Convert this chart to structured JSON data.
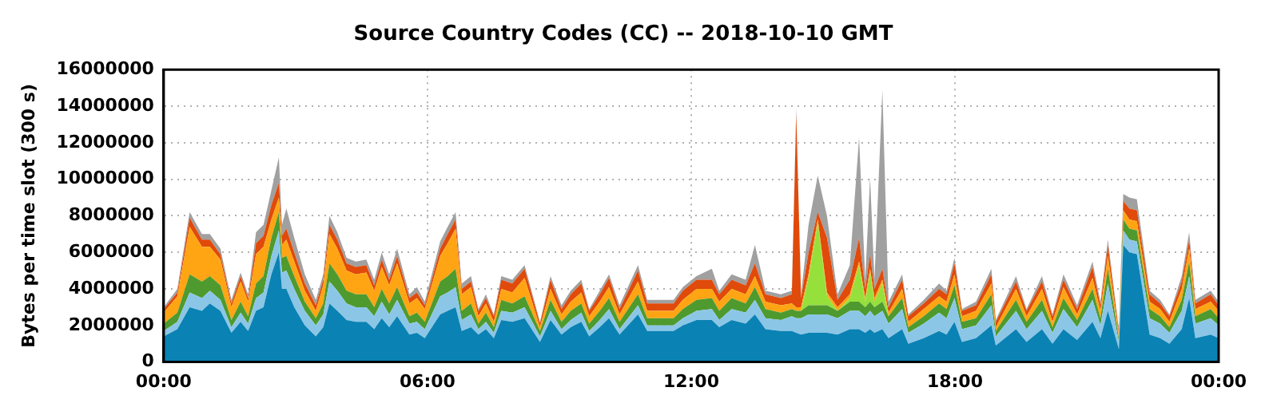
{
  "chart_data": {
    "type": "area",
    "stacked": true,
    "title": "Source Country Codes (CC) -- 2018-10-10 GMT",
    "ylabel": "Bytes per time slot (300 s)",
    "grid": true,
    "legend": false,
    "xlim": [
      0,
      24
    ],
    "xticks": [
      {
        "value": 0,
        "label": "00:00"
      },
      {
        "value": 6,
        "label": "06:00"
      },
      {
        "value": 12,
        "label": "12:00"
      },
      {
        "value": 18,
        "label": "18:00"
      },
      {
        "value": 24,
        "label": "00:00"
      }
    ],
    "ylim": [
      0,
      16000000
    ],
    "yticks": [
      0,
      2000000,
      4000000,
      6000000,
      8000000,
      10000000,
      12000000,
      14000000,
      16000000
    ],
    "x": [
      0,
      0.31,
      0.59,
      0.87,
      1.05,
      1.29,
      1.54,
      1.75,
      1.92,
      2.1,
      2.27,
      2.45,
      2.62,
      2.69,
      2.79,
      2.97,
      3.21,
      3.46,
      3.63,
      3.77,
      3.95,
      4.16,
      4.37,
      4.61,
      4.79,
      4.96,
      5.13,
      5.31,
      5.59,
      5.76,
      5.94,
      6.29,
      6.46,
      6.64,
      6.78,
      6.99,
      7.16,
      7.33,
      7.51,
      7.68,
      7.93,
      8.21,
      8.56,
      8.8,
      9.05,
      9.26,
      9.5,
      9.68,
      9.92,
      10.13,
      10.37,
      10.79,
      11.0,
      11.25,
      11.6,
      11.81,
      12.12,
      12.47,
      12.64,
      12.92,
      13.24,
      13.45,
      13.69,
      14.04,
      14.29,
      14.39,
      14.5,
      14.67,
      14.88,
      15.09,
      15.33,
      15.61,
      15.82,
      15.96,
      16.07,
      16.17,
      16.35,
      16.49,
      16.8,
      16.94,
      17.29,
      17.64,
      17.81,
      17.99,
      18.16,
      18.48,
      18.83,
      18.93,
      19.39,
      19.63,
      19.98,
      20.22,
      20.47,
      20.78,
      21.13,
      21.31,
      21.48,
      21.73,
      21.83,
      21.97,
      22.14,
      22.43,
      22.67,
      22.88,
      23.16,
      23.33,
      23.47,
      23.82,
      24
    ],
    "series": [
      {
        "color": "#0a82b4",
        "values": [
          1400000.0,
          1800000.0,
          3000000.0,
          2800000.0,
          3200000.0,
          2800000.0,
          1600000.0,
          2200000.0,
          1700000.0,
          2800000.0,
          3000000.0,
          4800000.0,
          6000000.0,
          4000000.0,
          4000000.0,
          3000000.0,
          2000000.0,
          1400000.0,
          1900000.0,
          3200000.0,
          2800000.0,
          2300000.0,
          2200000.0,
          2200000.0,
          1800000.0,
          2400000.0,
          1900000.0,
          2500000.0,
          1500000.0,
          1600000.0,
          1300000.0,
          2600000.0,
          2800000.0,
          3000000.0,
          1700000.0,
          1900000.0,
          1500000.0,
          1800000.0,
          1300000.0,
          2300000.0,
          2200000.0,
          2400000.0,
          1100000.0,
          2300000.0,
          1500000.0,
          1900000.0,
          2200000.0,
          1400000.0,
          1900000.0,
          2400000.0,
          1500000.0,
          2600000.0,
          1700000.0,
          1700000.0,
          1700000.0,
          2000000.0,
          2300000.0,
          2300000.0,
          1900000.0,
          2300000.0,
          2100000.0,
          2600000.0,
          1800000.0,
          1700000.0,
          1700000.0,
          1600000.0,
          1500000.0,
          1600000.0,
          1600000.0,
          1600000.0,
          1500000.0,
          1800000.0,
          1800000.0,
          1600000.0,
          1800000.0,
          1600000.0,
          1800000.0,
          1300000.0,
          1800000.0,
          1000000.0,
          1300000.0,
          1700000.0,
          1500000.0,
          2200000.0,
          1100000.0,
          1300000.0,
          2000000.0,
          900000.0,
          1800000.0,
          1100000.0,
          1800000.0,
          1000000.0,
          1800000.0,
          1200000.0,
          2200000.0,
          1300000.0,
          2800000.0,
          700000.0,
          6400000.0,
          6000000.0,
          5900000.0,
          1500000.0,
          1300000.0,
          1000000.0,
          1800000.0,
          3500000.0,
          1300000.0,
          1500000.0,
          1300000.0
        ]
      },
      {
        "color": "#8cc6e6",
        "values": [
          300000.0,
          400000.0,
          800000.0,
          700000.0,
          700000.0,
          600000.0,
          300000.0,
          500000.0,
          400000.0,
          700000.0,
          800000.0,
          1000000.0,
          1200000.0,
          900000.0,
          1000000.0,
          1000000.0,
          800000.0,
          600000.0,
          700000.0,
          1200000.0,
          1100000.0,
          900000.0,
          800000.0,
          800000.0,
          700000.0,
          900000.0,
          700000.0,
          900000.0,
          600000.0,
          600000.0,
          500000.0,
          1000000.0,
          1000000.0,
          1100000.0,
          600000.0,
          700000.0,
          300000.0,
          400000.0,
          300000.0,
          500000.0,
          500000.0,
          600000.0,
          300000.0,
          500000.0,
          300000.0,
          400000.0,
          500000.0,
          300000.0,
          400000.0,
          500000.0,
          300000.0,
          500000.0,
          300000.0,
          300000.0,
          300000.0,
          400000.0,
          500000.0,
          600000.0,
          400000.0,
          600000.0,
          600000.0,
          800000.0,
          600000.0,
          600000.0,
          800000.0,
          800000.0,
          900000.0,
          1000000.0,
          1000000.0,
          1000000.0,
          900000.0,
          1000000.0,
          1000000.0,
          900000.0,
          1000000.0,
          900000.0,
          1000000.0,
          800000.0,
          1100000.0,
          600000.0,
          800000.0,
          1000000.0,
          900000.0,
          1300000.0,
          700000.0,
          700000.0,
          1100000.0,
          500000.0,
          1000000.0,
          700000.0,
          1000000.0,
          600000.0,
          1100000.0,
          700000.0,
          1200000.0,
          700000.0,
          1500000.0,
          400000.0,
          800000.0,
          700000.0,
          700000.0,
          900000.0,
          800000.0,
          600000.0,
          1000000.0,
          1200000.0,
          800000.0,
          900000.0,
          700000.0
        ]
      },
      {
        "color": "#4e9a2e",
        "values": [
          400000.0,
          500000.0,
          1000000.0,
          900000.0,
          800000.0,
          800000.0,
          400000.0,
          600000.0,
          400000.0,
          800000.0,
          900000.0,
          1000000.0,
          1000000.0,
          800000.0,
          800000.0,
          700000.0,
          500000.0,
          400000.0,
          600000.0,
          1000000.0,
          900000.0,
          700000.0,
          700000.0,
          700000.0,
          500000.0,
          700000.0,
          600000.0,
          700000.0,
          400000.0,
          500000.0,
          400000.0,
          800000.0,
          900000.0,
          1000000.0,
          500000.0,
          600000.0,
          300000.0,
          500000.0,
          300000.0,
          600000.0,
          500000.0,
          600000.0,
          300000.0,
          600000.0,
          400000.0,
          500000.0,
          500000.0,
          400000.0,
          500000.0,
          600000.0,
          400000.0,
          600000.0,
          400000.0,
          400000.0,
          400000.0,
          500000.0,
          600000.0,
          600000.0,
          500000.0,
          600000.0,
          500000.0,
          700000.0,
          500000.0,
          400000.0,
          400000.0,
          400000.0,
          400000.0,
          500000.0,
          500000.0,
          500000.0,
          400000.0,
          500000.0,
          500000.0,
          500000.0,
          500000.0,
          500000.0,
          500000.0,
          400000.0,
          600000.0,
          300000.0,
          400000.0,
          500000.0,
          500000.0,
          700000.0,
          400000.0,
          400000.0,
          600000.0,
          300000.0,
          600000.0,
          400000.0,
          600000.0,
          300000.0,
          600000.0,
          400000.0,
          600000.0,
          400000.0,
          800000.0,
          200000.0,
          600000.0,
          600000.0,
          600000.0,
          500000.0,
          400000.0,
          300000.0,
          600000.0,
          800000.0,
          400000.0,
          500000.0,
          400000.0
        ]
      },
      {
        "color": "#96e03c",
        "values": [
          0,
          0,
          0,
          0,
          0,
          0,
          0,
          0,
          0,
          0,
          0,
          0,
          0,
          0,
          0,
          0,
          0,
          0,
          0,
          0,
          0,
          0,
          0,
          0,
          0,
          0,
          0,
          0,
          0,
          0,
          0,
          0,
          0,
          0,
          0,
          0,
          0,
          0,
          0,
          0,
          0,
          0,
          0,
          0,
          0,
          0,
          0,
          0,
          0,
          0,
          0,
          0,
          0,
          0,
          0,
          0,
          0,
          0,
          0,
          0,
          0,
          0,
          0,
          0,
          0,
          0,
          0,
          1500000.0,
          4500000.0,
          500000.0,
          0,
          200000.0,
          2000000.0,
          300000.0,
          1600000.0,
          300000.0,
          1000000.0,
          0,
          0,
          0,
          0,
          0,
          0,
          0,
          0,
          0,
          0,
          0,
          0,
          0,
          0,
          0,
          0,
          0,
          0,
          0,
          0,
          0,
          0,
          0,
          0,
          0,
          0,
          0,
          0,
          0,
          0,
          0,
          0
        ]
      },
      {
        "color": "#ffa514",
        "values": [
          600000.0,
          900000.0,
          2600000.0,
          1900000.0,
          1600000.0,
          1400000.0,
          700000.0,
          1100000.0,
          800000.0,
          1600000.0,
          1600000.0,
          1000000.0,
          800000.0,
          700000.0,
          900000.0,
          800000.0,
          600000.0,
          400000.0,
          1000000.0,
          1600000.0,
          1400000.0,
          1100000.0,
          1100000.0,
          1200000.0,
          900000.0,
          1200000.0,
          1000000.0,
          1300000.0,
          700000.0,
          800000.0,
          700000.0,
          1400000.0,
          1800000.0,
          2200000.0,
          900000.0,
          900000.0,
          400000.0,
          500000.0,
          300000.0,
          600000.0,
          600000.0,
          1000000.0,
          200000.0,
          600000.0,
          400000.0,
          500000.0,
          600000.0,
          400000.0,
          500000.0,
          600000.0,
          400000.0,
          700000.0,
          400000.0,
          400000.0,
          400000.0,
          500000.0,
          600000.0,
          500000.0,
          500000.0,
          500000.0,
          500000.0,
          600000.0,
          400000.0,
          400000.0,
          300000.0,
          200000.0,
          200000.0,
          200000.0,
          200000.0,
          200000.0,
          200000.0,
          200000.0,
          200000.0,
          200000.0,
          200000.0,
          200000.0,
          200000.0,
          200000.0,
          500000.0,
          300000.0,
          400000.0,
          400000.0,
          400000.0,
          600000.0,
          300000.0,
          400000.0,
          600000.0,
          200000.0,
          600000.0,
          300000.0,
          600000.0,
          300000.0,
          600000.0,
          300000.0,
          600000.0,
          400000.0,
          700000.0,
          200000.0,
          500000.0,
          500000.0,
          500000.0,
          400000.0,
          400000.0,
          300000.0,
          600000.0,
          700000.0,
          400000.0,
          400000.0,
          400000.0
        ]
      },
      {
        "color": "#e04a0a",
        "values": [
          200000.0,
          200000.0,
          500000.0,
          400000.0,
          400000.0,
          300000.0,
          200000.0,
          300000.0,
          200000.0,
          600000.0,
          600000.0,
          800000.0,
          800000.0,
          500000.0,
          600000.0,
          500000.0,
          400000.0,
          300000.0,
          300000.0,
          500000.0,
          500000.0,
          400000.0,
          400000.0,
          400000.0,
          300000.0,
          400000.0,
          300000.0,
          400000.0,
          300000.0,
          300000.0,
          200000.0,
          400000.0,
          500000.0,
          500000.0,
          300000.0,
          300000.0,
          300000.0,
          300000.0,
          300000.0,
          500000.0,
          500000.0,
          500000.0,
          200000.0,
          500000.0,
          300000.0,
          400000.0,
          500000.0,
          300000.0,
          400000.0,
          500000.0,
          300000.0,
          600000.0,
          400000.0,
          400000.0,
          400000.0,
          500000.0,
          500000.0,
          500000.0,
          400000.0,
          500000.0,
          500000.0,
          700000.0,
          400000.0,
          400000.0,
          500000.0,
          10600000.0,
          500000.0,
          1200000.0,
          400000.0,
          3000000.0,
          400000.0,
          800000.0,
          1300000.0,
          500000.0,
          800000.0,
          500000.0,
          600000.0,
          300000.0,
          500000.0,
          300000.0,
          300000.0,
          400000.0,
          400000.0,
          600000.0,
          300000.0,
          300000.0,
          500000.0,
          300000.0,
          400000.0,
          300000.0,
          400000.0,
          300000.0,
          400000.0,
          300000.0,
          600000.0,
          300000.0,
          600000.0,
          200000.0,
          500000.0,
          600000.0,
          600000.0,
          400000.0,
          300000.0,
          300000.0,
          400000.0,
          500000.0,
          300000.0,
          400000.0,
          300000.0
        ]
      },
      {
        "color": "#a0a0a0",
        "values": [
          100000.0,
          200000.0,
          300000.0,
          300000.0,
          300000.0,
          300000.0,
          200000.0,
          200000.0,
          200000.0,
          600000.0,
          600000.0,
          800000.0,
          1400000.0,
          600000.0,
          1100000.0,
          800000.0,
          500000.0,
          300000.0,
          300000.0,
          500000.0,
          400000.0,
          300000.0,
          300000.0,
          300000.0,
          300000.0,
          400000.0,
          300000.0,
          400000.0,
          200000.0,
          300000.0,
          200000.0,
          400000.0,
          400000.0,
          400000.0,
          300000.0,
          300000.0,
          100000.0,
          200000.0,
          100000.0,
          200000.0,
          200000.0,
          200000.0,
          100000.0,
          200000.0,
          200000.0,
          200000.0,
          200000.0,
          100000.0,
          200000.0,
          200000.0,
          200000.0,
          300000.0,
          200000.0,
          200000.0,
          200000.0,
          200000.0,
          200000.0,
          600000.0,
          200000.0,
          300000.0,
          300000.0,
          1000000.0,
          200000.0,
          200000.0,
          200000.0,
          300000.0,
          200000.0,
          1500000.0,
          2000000.0,
          1200000.0,
          300000.0,
          800000.0,
          5500000.0,
          500000.0,
          4200000.0,
          500000.0,
          9800000.0,
          300000.0,
          300000.0,
          100000.0,
          200000.0,
          300000.0,
          200000.0,
          300000.0,
          100000.0,
          200000.0,
          300000.0,
          100000.0,
          300000.0,
          100000.0,
          300000.0,
          100000.0,
          300000.0,
          200000.0,
          300000.0,
          200000.0,
          300000.0,
          100000.0,
          400000.0,
          600000.0,
          600000.0,
          200000.0,
          200000.0,
          100000.0,
          300000.0,
          400000.0,
          200000.0,
          200000.0,
          200000.0
        ]
      }
    ]
  }
}
